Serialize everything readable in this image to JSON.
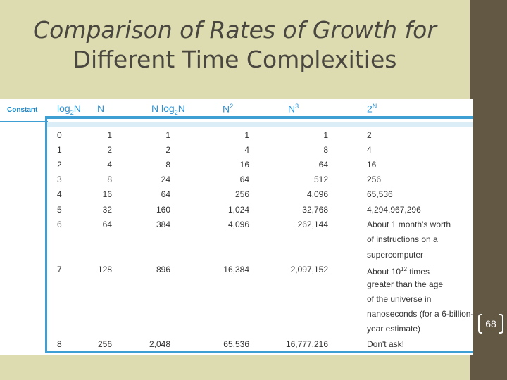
{
  "title": {
    "line1": "Comparison of Rates of Growth for",
    "line2": "Different Time Complexities"
  },
  "constant_label": "Constant",
  "headers": {
    "log2n": {
      "base": "log",
      "sub": "2",
      "suffix": "N"
    },
    "n": "N",
    "nlog2n": {
      "prefix": "N log",
      "sub": "2",
      "suffix": "N"
    },
    "n2": {
      "base": "N",
      "sup": "2"
    },
    "n3": {
      "base": "N",
      "sup": "3"
    },
    "twon": {
      "base": "2",
      "sup": "N"
    }
  },
  "rows": [
    [
      "0",
      "1",
      "1",
      "1",
      "1",
      "2"
    ],
    [
      "1",
      "2",
      "2",
      "4",
      "8",
      "4"
    ],
    [
      "2",
      "4",
      "8",
      "16",
      "64",
      "16"
    ],
    [
      "3",
      "8",
      "24",
      "64",
      "512",
      "256"
    ],
    [
      "4",
      "16",
      "64",
      "256",
      "4,096",
      "65,536"
    ],
    [
      "5",
      "32",
      "160",
      "1,024",
      "32,768",
      "4,294,967,296"
    ],
    [
      "6",
      "64",
      "384",
      "4,096",
      "262,144",
      "About 1 month's worth"
    ],
    [
      "7",
      "128",
      "896",
      "16,384",
      "2,097,152",
      "About 10"
    ],
    [
      "8",
      "256",
      "2,048",
      "65,536",
      "16,777,216",
      "Don't ask!"
    ]
  ],
  "row6_continuation": [
    "of instructions on a",
    "supercomputer"
  ],
  "row7_power": {
    "sup": "12",
    "suffix": " times"
  },
  "row7_continuation": [
    "greater than the age",
    "of the universe in",
    "nanoseconds (for a 6-billion-",
    "year estimate)"
  ],
  "slide_number": "68"
}
